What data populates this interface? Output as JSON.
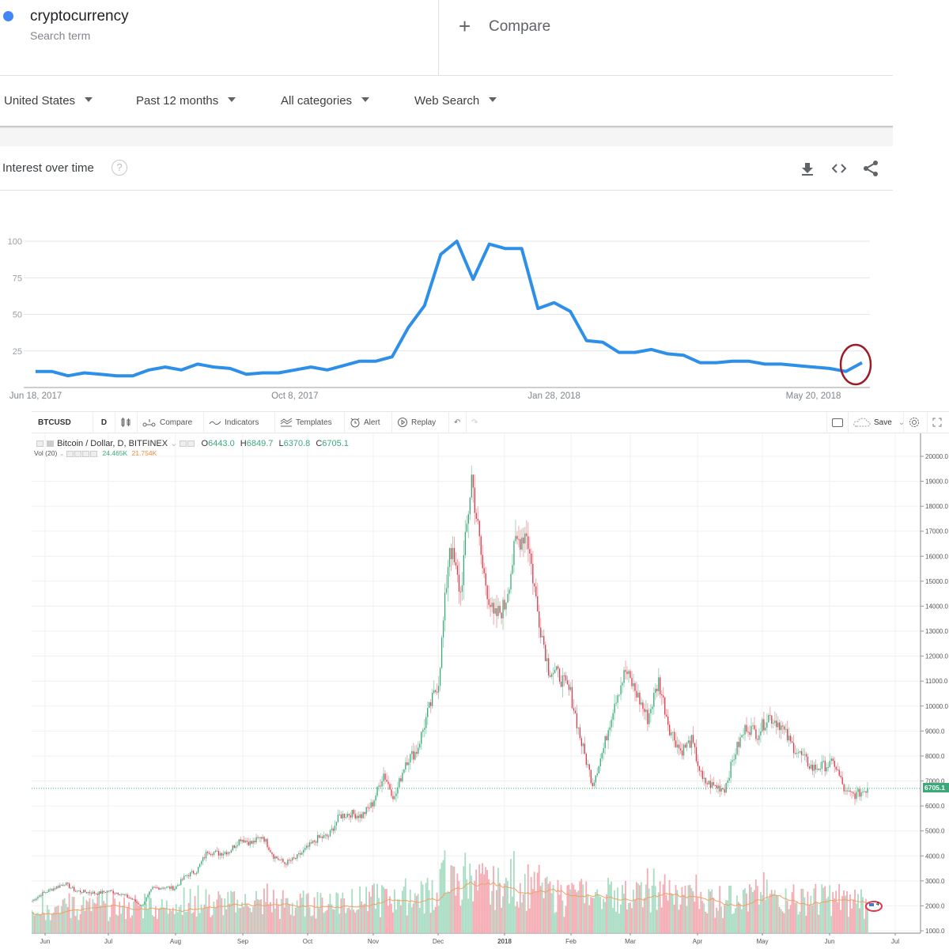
{
  "search_term": {
    "name": "cryptocurrency",
    "subtitle": "Search term",
    "dot_color": "#4285f4"
  },
  "compare": {
    "icon": "plus-icon",
    "label": "Compare"
  },
  "filters": [
    {
      "label": "United States"
    },
    {
      "label": "Past 12 months"
    },
    {
      "label": "All categories"
    },
    {
      "label": "Web Search"
    }
  ],
  "interest_over_time": {
    "title": "Interest over time",
    "help_icon": "?",
    "actions": [
      "download-icon",
      "embed-icon",
      "share-icon"
    ]
  },
  "tradingview": {
    "symbol": "BTCUSD",
    "interval": "D",
    "toolbar": {
      "compare": "Compare",
      "indicators": "Indicators",
      "templates": "Templates",
      "alert": "Alert",
      "replay": "Replay",
      "save": "Save"
    },
    "legend": {
      "title": "Bitcoin / Dollar, D, BITFINEX",
      "o_label": "O",
      "o": "6443.0",
      "h_label": "H",
      "h": "6849.7",
      "l_label": "L",
      "l": "6370.8",
      "c_label": "C",
      "c": "6705.1",
      "vol_label": "Vol (20)",
      "vol": "24.465K",
      "vol_ma": "21.754K"
    },
    "last_price": "6705.1",
    "colors": {
      "up": "#3da87a",
      "down": "#e0394b",
      "vol_up": "#a8dcc3",
      "vol_down": "#f5aab2",
      "ma": "#f0a060"
    }
  },
  "chart_data": [
    {
      "type": "line",
      "title": "Interest over time",
      "series": [
        {
          "name": "cryptocurrency",
          "color": "#2d8fe8",
          "values": [
            11,
            11,
            8,
            10,
            9,
            8,
            8,
            12,
            14,
            12,
            16,
            14,
            13,
            9,
            10,
            10,
            12,
            14,
            12,
            15,
            18,
            18,
            21,
            41,
            56,
            91,
            100,
            74,
            98,
            95,
            95,
            54,
            58,
            52,
            32,
            31,
            24,
            24,
            26,
            23,
            22,
            17,
            17,
            18,
            18,
            16,
            16,
            15,
            14,
            13,
            11,
            17
          ]
        }
      ],
      "x_tick_labels": [
        "Jun 18, 2017",
        "Oct 8, 2017",
        "Jan 28, 2018",
        "May 20, 2018"
      ],
      "x_tick_index": [
        0,
        16,
        32,
        48
      ],
      "y_ticks": [
        25,
        50,
        75,
        100
      ],
      "ylim": [
        0,
        100
      ],
      "grid": true,
      "annotation": "red circle around final upturn"
    },
    {
      "type": "candlestick",
      "title": "Bitcoin / Dollar, D, BITFINEX",
      "xlabel": "",
      "ylabel": "",
      "x_tick_labels": [
        "Jun",
        "Jul",
        "Aug",
        "Sep",
        "Oct",
        "Nov",
        "Dec",
        "2018",
        "Feb",
        "Mar",
        "Apr",
        "May",
        "Jun",
        "Jul"
      ],
      "y_tick_labels": [
        "20000.0",
        "19000.0",
        "18000.0",
        "17000.0",
        "16000.0",
        "15000.0",
        "14000.0",
        "13000.0",
        "12000.0",
        "11000.0",
        "10000.0",
        "9000.0",
        "8000.0",
        "7000.0",
        "6000.0",
        "5000.0",
        "4000.0",
        "3000.0",
        "2000.0",
        "1000.0"
      ],
      "ylim": [
        1000,
        20000
      ],
      "weekly_closes": [
        2200,
        2500,
        2700,
        2900,
        2600,
        2550,
        2500,
        2600,
        2500,
        2300,
        2000,
        2700,
        2750,
        2700,
        3200,
        3400,
        4200,
        4100,
        4200,
        4700,
        4500,
        4800,
        4000,
        3700,
        3900,
        4300,
        4700,
        4800,
        5600,
        5700,
        5600,
        6100,
        7300,
        6300,
        7800,
        8200,
        9700,
        11000,
        16500,
        14500,
        19200,
        15500,
        13500,
        14000,
        16500,
        17000,
        13800,
        11500,
        11200,
        10500,
        8500,
        6900,
        8300,
        10200,
        11400,
        10500,
        9500,
        11000,
        9100,
        8200,
        8600,
        7000,
        6800,
        6700,
        8200,
        9200,
        8900,
        9600,
        9300,
        8500,
        8000,
        7500,
        7600,
        7700,
        6500,
        6450,
        6705
      ],
      "volume_ma_level": "orange line ~1500-2800 range"
    }
  ]
}
